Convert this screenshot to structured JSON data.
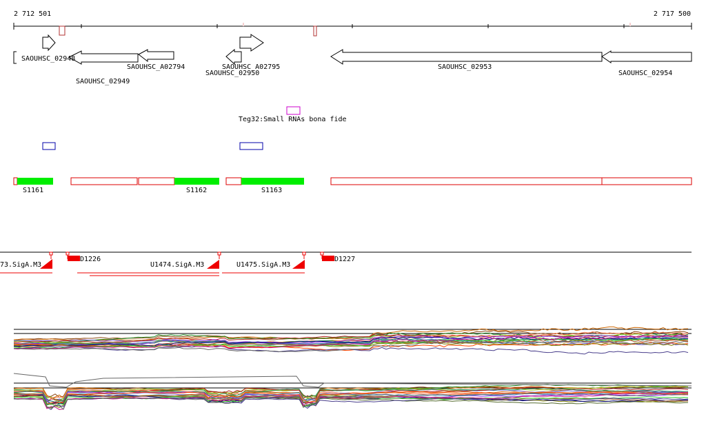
{
  "ruler": {
    "start_label": "2 712 501",
    "end_label": "2 717 500"
  },
  "genes": [
    {
      "id": "SAOUHSC_02948",
      "label": "SAOUHSC_02948"
    },
    {
      "id": "SAOUHSC_02949",
      "label": "SAOUHSC_02949"
    },
    {
      "id": "SAOUHSC_A02794",
      "label": "SAOUHSC_A02794"
    },
    {
      "id": "SAOUHSC_A02795",
      "label": "SAOUHSC_A02795"
    },
    {
      "id": "SAOUHSC_02950",
      "label": "SAOUHSC_02950"
    },
    {
      "id": "SAOUHSC_02953",
      "label": "SAOUHSC_02953"
    },
    {
      "id": "SAOUHSC_02954",
      "label": "SAOUHSC_02954"
    }
  ],
  "srna": {
    "label": "Teg32:Small RNAs bona fide"
  },
  "segments": [
    {
      "id": "S1161",
      "label": "S1161"
    },
    {
      "id": "S1162",
      "label": "S1162"
    },
    {
      "id": "S1163",
      "label": "S1163"
    }
  ],
  "tss": [
    {
      "id": "U1473",
      "label": "73.SigA.M3"
    },
    {
      "id": "U1474",
      "label": "U1474.SigA.M3"
    },
    {
      "id": "U1475",
      "label": "U1475.SigA.M3"
    }
  ],
  "downstream": [
    {
      "id": "D1226",
      "label": "D1226"
    },
    {
      "id": "D1227",
      "label": "D1227"
    }
  ],
  "colors": {
    "axis": "#000000",
    "gene_outline": "#000000",
    "segment_fill": "#00ee00",
    "segment_outline": "#dd0000",
    "srna_outline": "#cc00cc",
    "blue_box": "#0000aa",
    "tss": "#ee0000",
    "expression_palette": [
      "#8b4513",
      "#cc6600",
      "#228b22",
      "#6a5acd",
      "#9acd32",
      "#b22222",
      "#ff7f50",
      "#556b2f",
      "#2e8b57",
      "#8a2be2",
      "#d2691e",
      "#4682b4",
      "#ff4500",
      "#808000",
      "#000080",
      "#a0522d",
      "#32cd32",
      "#483d8b",
      "#c71585",
      "#666666"
    ]
  }
}
